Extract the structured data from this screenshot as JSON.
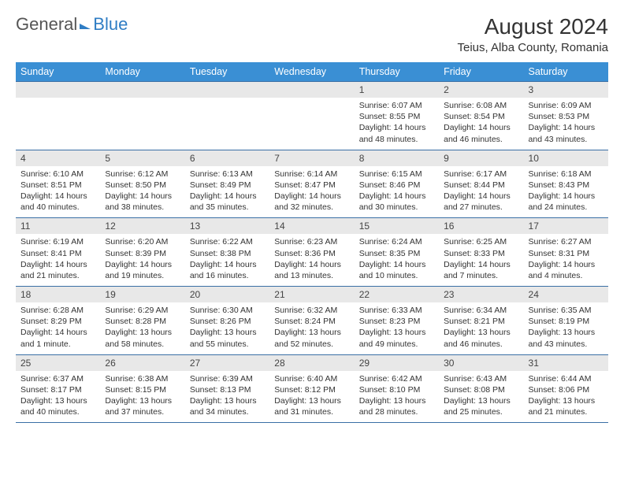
{
  "logo": {
    "part1": "General",
    "part2": "Blue"
  },
  "title": "August 2024",
  "location": "Teius, Alba County, Romania",
  "colors": {
    "header_bg": "#3a8fd4",
    "header_text": "#ffffff",
    "daynum_bg": "#e8e8e8",
    "rule": "#3a6fa5",
    "logo_blue": "#2f7dc4",
    "text": "#333333"
  },
  "typography": {
    "title_fontsize": 28,
    "location_fontsize": 15,
    "dayheader_fontsize": 12.5,
    "cell_fontsize": 10.5
  },
  "weekdays": [
    "Sunday",
    "Monday",
    "Tuesday",
    "Wednesday",
    "Thursday",
    "Friday",
    "Saturday"
  ],
  "weeks": [
    [
      null,
      null,
      null,
      null,
      {
        "d": "1",
        "sr": "Sunrise: 6:07 AM",
        "ss": "Sunset: 8:55 PM",
        "dl1": "Daylight: 14 hours",
        "dl2": "and 48 minutes."
      },
      {
        "d": "2",
        "sr": "Sunrise: 6:08 AM",
        "ss": "Sunset: 8:54 PM",
        "dl1": "Daylight: 14 hours",
        "dl2": "and 46 minutes."
      },
      {
        "d": "3",
        "sr": "Sunrise: 6:09 AM",
        "ss": "Sunset: 8:53 PM",
        "dl1": "Daylight: 14 hours",
        "dl2": "and 43 minutes."
      }
    ],
    [
      {
        "d": "4",
        "sr": "Sunrise: 6:10 AM",
        "ss": "Sunset: 8:51 PM",
        "dl1": "Daylight: 14 hours",
        "dl2": "and 40 minutes."
      },
      {
        "d": "5",
        "sr": "Sunrise: 6:12 AM",
        "ss": "Sunset: 8:50 PM",
        "dl1": "Daylight: 14 hours",
        "dl2": "and 38 minutes."
      },
      {
        "d": "6",
        "sr": "Sunrise: 6:13 AM",
        "ss": "Sunset: 8:49 PM",
        "dl1": "Daylight: 14 hours",
        "dl2": "and 35 minutes."
      },
      {
        "d": "7",
        "sr": "Sunrise: 6:14 AM",
        "ss": "Sunset: 8:47 PM",
        "dl1": "Daylight: 14 hours",
        "dl2": "and 32 minutes."
      },
      {
        "d": "8",
        "sr": "Sunrise: 6:15 AM",
        "ss": "Sunset: 8:46 PM",
        "dl1": "Daylight: 14 hours",
        "dl2": "and 30 minutes."
      },
      {
        "d": "9",
        "sr": "Sunrise: 6:17 AM",
        "ss": "Sunset: 8:44 PM",
        "dl1": "Daylight: 14 hours",
        "dl2": "and 27 minutes."
      },
      {
        "d": "10",
        "sr": "Sunrise: 6:18 AM",
        "ss": "Sunset: 8:43 PM",
        "dl1": "Daylight: 14 hours",
        "dl2": "and 24 minutes."
      }
    ],
    [
      {
        "d": "11",
        "sr": "Sunrise: 6:19 AM",
        "ss": "Sunset: 8:41 PM",
        "dl1": "Daylight: 14 hours",
        "dl2": "and 21 minutes."
      },
      {
        "d": "12",
        "sr": "Sunrise: 6:20 AM",
        "ss": "Sunset: 8:39 PM",
        "dl1": "Daylight: 14 hours",
        "dl2": "and 19 minutes."
      },
      {
        "d": "13",
        "sr": "Sunrise: 6:22 AM",
        "ss": "Sunset: 8:38 PM",
        "dl1": "Daylight: 14 hours",
        "dl2": "and 16 minutes."
      },
      {
        "d": "14",
        "sr": "Sunrise: 6:23 AM",
        "ss": "Sunset: 8:36 PM",
        "dl1": "Daylight: 14 hours",
        "dl2": "and 13 minutes."
      },
      {
        "d": "15",
        "sr": "Sunrise: 6:24 AM",
        "ss": "Sunset: 8:35 PM",
        "dl1": "Daylight: 14 hours",
        "dl2": "and 10 minutes."
      },
      {
        "d": "16",
        "sr": "Sunrise: 6:25 AM",
        "ss": "Sunset: 8:33 PM",
        "dl1": "Daylight: 14 hours",
        "dl2": "and 7 minutes."
      },
      {
        "d": "17",
        "sr": "Sunrise: 6:27 AM",
        "ss": "Sunset: 8:31 PM",
        "dl1": "Daylight: 14 hours",
        "dl2": "and 4 minutes."
      }
    ],
    [
      {
        "d": "18",
        "sr": "Sunrise: 6:28 AM",
        "ss": "Sunset: 8:29 PM",
        "dl1": "Daylight: 14 hours",
        "dl2": "and 1 minute."
      },
      {
        "d": "19",
        "sr": "Sunrise: 6:29 AM",
        "ss": "Sunset: 8:28 PM",
        "dl1": "Daylight: 13 hours",
        "dl2": "and 58 minutes."
      },
      {
        "d": "20",
        "sr": "Sunrise: 6:30 AM",
        "ss": "Sunset: 8:26 PM",
        "dl1": "Daylight: 13 hours",
        "dl2": "and 55 minutes."
      },
      {
        "d": "21",
        "sr": "Sunrise: 6:32 AM",
        "ss": "Sunset: 8:24 PM",
        "dl1": "Daylight: 13 hours",
        "dl2": "and 52 minutes."
      },
      {
        "d": "22",
        "sr": "Sunrise: 6:33 AM",
        "ss": "Sunset: 8:23 PM",
        "dl1": "Daylight: 13 hours",
        "dl2": "and 49 minutes."
      },
      {
        "d": "23",
        "sr": "Sunrise: 6:34 AM",
        "ss": "Sunset: 8:21 PM",
        "dl1": "Daylight: 13 hours",
        "dl2": "and 46 minutes."
      },
      {
        "d": "24",
        "sr": "Sunrise: 6:35 AM",
        "ss": "Sunset: 8:19 PM",
        "dl1": "Daylight: 13 hours",
        "dl2": "and 43 minutes."
      }
    ],
    [
      {
        "d": "25",
        "sr": "Sunrise: 6:37 AM",
        "ss": "Sunset: 8:17 PM",
        "dl1": "Daylight: 13 hours",
        "dl2": "and 40 minutes."
      },
      {
        "d": "26",
        "sr": "Sunrise: 6:38 AM",
        "ss": "Sunset: 8:15 PM",
        "dl1": "Daylight: 13 hours",
        "dl2": "and 37 minutes."
      },
      {
        "d": "27",
        "sr": "Sunrise: 6:39 AM",
        "ss": "Sunset: 8:13 PM",
        "dl1": "Daylight: 13 hours",
        "dl2": "and 34 minutes."
      },
      {
        "d": "28",
        "sr": "Sunrise: 6:40 AM",
        "ss": "Sunset: 8:12 PM",
        "dl1": "Daylight: 13 hours",
        "dl2": "and 31 minutes."
      },
      {
        "d": "29",
        "sr": "Sunrise: 6:42 AM",
        "ss": "Sunset: 8:10 PM",
        "dl1": "Daylight: 13 hours",
        "dl2": "and 28 minutes."
      },
      {
        "d": "30",
        "sr": "Sunrise: 6:43 AM",
        "ss": "Sunset: 8:08 PM",
        "dl1": "Daylight: 13 hours",
        "dl2": "and 25 minutes."
      },
      {
        "d": "31",
        "sr": "Sunrise: 6:44 AM",
        "ss": "Sunset: 8:06 PM",
        "dl1": "Daylight: 13 hours",
        "dl2": "and 21 minutes."
      }
    ]
  ]
}
